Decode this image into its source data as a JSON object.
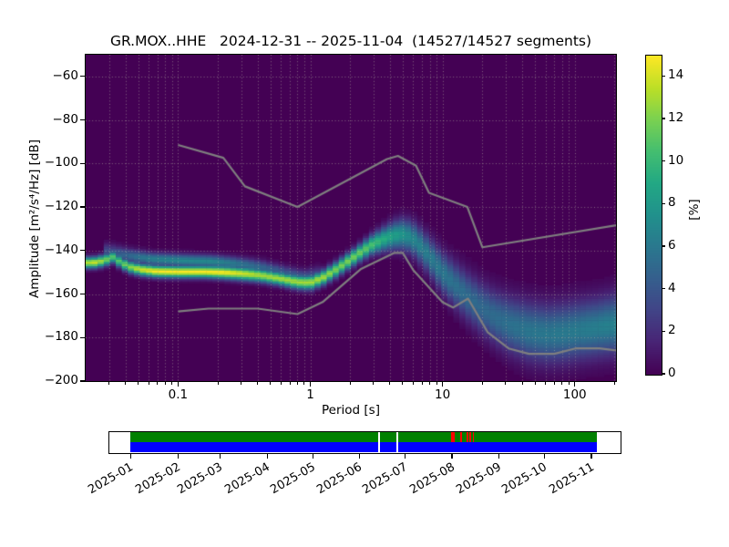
{
  "title": "GR.MOX..HHE   2024-12-31 -- 2025-11-04  (14527/14527 segments)",
  "station": "GR.MOX..HHE",
  "date_range": "2024-12-31 -- 2025-11-04",
  "segments": "14527/14527",
  "axes": {
    "xlabel": "Period [s]",
    "ylabel": "Amplitude [m²/s⁴/Hz] [dB]",
    "x_scale": "log",
    "xlim": [
      0.02,
      205
    ],
    "ylim": [
      -200,
      -50
    ],
    "x_major_ticks": [
      0.1,
      1,
      10,
      100
    ],
    "x_major_labels": [
      "0.1",
      "1",
      "10",
      "100"
    ],
    "y_ticks": [
      -60,
      -80,
      -100,
      -120,
      -140,
      -160,
      -180,
      -200
    ],
    "grid_style": "dotted"
  },
  "colorbar": {
    "label": "[%]",
    "ticks": [
      0,
      2,
      4,
      6,
      8,
      10,
      12,
      14
    ],
    "vmin": 0,
    "vmax": 15,
    "colormap": "viridis"
  },
  "colors": {
    "figure_bg": "#ffffff",
    "heatmap_bg": "#440154",
    "noise_model_line": "#7f7f7f",
    "grid_dots": "rgba(186,186,166,0.55)",
    "avail_psd": "#008000",
    "avail_data": "#0000ff",
    "avail_gap_mark": "#ff0000",
    "text": "#000000"
  },
  "chart_data": {
    "type": "heatmap",
    "description": "Probabilistic power spectral density: probability [%] vs period [s] (log) and amplitude [dB]. Ridge = PSD probability mode; gray lines = Peterson NHNM/NLNM noise models.",
    "pdf_mode_curve_fields": [
      "period_s",
      "mode_db",
      "peak_percent",
      "sigma_db"
    ],
    "pdf_mode_curve": [
      [
        0.0195,
        -145.5,
        13,
        1.7
      ],
      [
        0.024,
        -145.3,
        14,
        1.7
      ],
      [
        0.028,
        -144.3,
        12,
        1.8
      ],
      [
        0.032,
        -142.8,
        11,
        1.8
      ],
      [
        0.036,
        -144.8,
        11,
        1.8
      ],
      [
        0.042,
        -147.2,
        12,
        1.8
      ],
      [
        0.052,
        -148.6,
        14,
        1.8
      ],
      [
        0.068,
        -149.4,
        15,
        1.8
      ],
      [
        0.1,
        -149.6,
        15,
        1.8
      ],
      [
        0.16,
        -149.6,
        15,
        1.8
      ],
      [
        0.22,
        -149.9,
        15,
        1.9
      ],
      [
        0.3,
        -150.4,
        14,
        2.0
      ],
      [
        0.42,
        -151.2,
        13,
        2.0
      ],
      [
        0.6,
        -152.8,
        13,
        2.0
      ],
      [
        0.8,
        -154.3,
        13,
        2.1
      ],
      [
        1.0,
        -154.6,
        13,
        2.2
      ],
      [
        1.25,
        -152.3,
        13,
        2.2
      ],
      [
        1.55,
        -148.8,
        12,
        2.3
      ],
      [
        1.95,
        -144.6,
        12,
        2.4
      ],
      [
        2.45,
        -140.3,
        11.5,
        2.6
      ],
      [
        3.0,
        -136.8,
        10.5,
        3.0
      ],
      [
        3.8,
        -134.0,
        9,
        3.8
      ],
      [
        4.8,
        -132.3,
        8,
        4.6
      ],
      [
        5.8,
        -133.6,
        7,
        5.0
      ],
      [
        7.0,
        -138.4,
        6.5,
        5.4
      ],
      [
        8.5,
        -144.6,
        6.2,
        5.8
      ],
      [
        10.0,
        -150.0,
        6.0,
        6.2
      ],
      [
        12.5,
        -155.8,
        5.6,
        6.8
      ],
      [
        15.5,
        -161.0,
        5.3,
        7.2
      ],
      [
        19.5,
        -166.0,
        5.1,
        7.6
      ],
      [
        25.0,
        -170.6,
        5.3,
        8.0
      ],
      [
        33.0,
        -174.2,
        5.6,
        8.5
      ],
      [
        45.0,
        -177.0,
        5.9,
        8.8
      ],
      [
        62.0,
        -178.2,
        6.0,
        8.8
      ],
      [
        82.0,
        -177.7,
        6.1,
        8.8
      ],
      [
        105,
        -176.7,
        6.2,
        8.8
      ],
      [
        150,
        -175.3,
        6.4,
        8.8
      ],
      [
        205,
        -173.8,
        6.6,
        9.0
      ]
    ],
    "secondary_band": [
      [
        0.028,
        -140.2,
        3.5,
        2.5
      ],
      [
        0.042,
        -142.2,
        5,
        2.2
      ],
      [
        0.062,
        -143.7,
        6.5,
        2.0
      ],
      [
        0.1,
        -144.4,
        7,
        2.0
      ],
      [
        0.18,
        -144.9,
        7,
        2.0
      ],
      [
        0.28,
        -145.9,
        6,
        2.0
      ],
      [
        0.42,
        -147.5,
        5,
        2.2
      ],
      [
        0.62,
        -150.0,
        4.5,
        2.2
      ],
      [
        0.88,
        -152.0,
        4,
        2.2
      ],
      [
        1.25,
        -150.3,
        3,
        2.4
      ]
    ],
    "noise_models": {
      "high_nhnm": [
        [
          0.1,
          -91.5
        ],
        [
          0.22,
          -97.4
        ],
        [
          0.32,
          -110.5
        ],
        [
          0.8,
          -120.0
        ],
        [
          3.8,
          -98.0
        ],
        [
          4.6,
          -96.5
        ],
        [
          6.3,
          -101.0
        ],
        [
          7.9,
          -113.5
        ],
        [
          15.4,
          -120.0
        ],
        [
          20.0,
          -138.5
        ],
        [
          354.8,
          -126.0
        ]
      ],
      "low_nlnm": [
        [
          0.1,
          -168.0
        ],
        [
          0.17,
          -166.7
        ],
        [
          0.4,
          -166.7
        ],
        [
          0.8,
          -169.2
        ],
        [
          1.24,
          -163.7
        ],
        [
          2.4,
          -148.6
        ],
        [
          4.3,
          -141.1
        ],
        [
          5.0,
          -141.1
        ],
        [
          6.0,
          -149.0
        ],
        [
          10.0,
          -163.8
        ],
        [
          12.0,
          -166.2
        ],
        [
          15.6,
          -162.1
        ],
        [
          21.9,
          -177.5
        ],
        [
          31.6,
          -185.0
        ],
        [
          45.0,
          -187.5
        ],
        [
          70.0,
          -187.5
        ],
        [
          101.0,
          -185.0
        ],
        [
          154.0,
          -185.0
        ],
        [
          328.0,
          -187.5
        ]
      ]
    }
  },
  "availability": {
    "start": "2024-12-31",
    "end": "2025-11-04",
    "month_tick_labels": [
      "2025-01",
      "2025-02",
      "2025-03",
      "2025-04",
      "2025-05",
      "2025-06",
      "2025-07",
      "2025-08",
      "2025-09",
      "2025-10",
      "2025-11"
    ],
    "white_gaps": [
      "2025-06-13",
      "2025-06-25"
    ],
    "red_marks": [
      {
        "date": "2025-07-31",
        "days": 2
      },
      {
        "date": "2025-08-06",
        "days": 1
      },
      {
        "date": "2025-08-10",
        "days": 1
      },
      {
        "date": "2025-08-12",
        "days": 1
      },
      {
        "date": "2025-08-14",
        "days": 1
      }
    ]
  }
}
